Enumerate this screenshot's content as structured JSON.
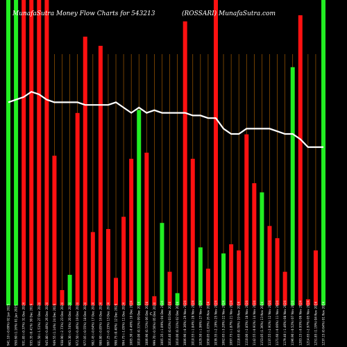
{
  "page": {
    "title_left": "MunafaSutra  Money Flow  Charts for 543213",
    "title_right": "(ROSSARI) MunafaSutra.com",
    "axis_marker": "C"
  },
  "colors": {
    "background": "#000000",
    "up": "#22ee22",
    "down": "#ff1111",
    "grid": "#a05a00",
    "line": "#ffffff",
    "text": "#ffffff"
  },
  "chart_data": {
    "type": "bar",
    "title": "MunafaSutra  Money Flow  Charts for 543213",
    "subtitle": "(ROSSARI) MunafaSutra.com",
    "ylim": [
      0,
      100
    ],
    "grid": "vertical",
    "categories": [
      "941.10 (-0.69%) 02 Jan 2025",
      "950.60 (1.16%) 01 Jan 2025",
      "931.85 (-0.37%) 31 Dec 2024",
      "935.35 (0.41%) 30 Dec 2024",
      "931.50 (-1.51%) 27 Dec 2024",
      "945.80 (-0.40%) 26 Dec 2024",
      "949.55 (1.14%) 24 Dec 2024",
      "938.90 (-2.73%) 23 Dec 2024",
      "965.30 (-0.74%) 20 Dec 2024",
      "972.50 (-0.46%) 19 Dec 2024",
      "977.05 (-0.55%) 18 Dec 2024",
      "982.45 (-0.64%) 17 Dec 2024",
      "988.80 (-0.85%) 16 Dec 2024",
      "997.25 (-0.15%) 13 Dec 2024",
      "998.75 (0.40%) 12 Dec 2024",
      "994.75 (-1.05%) 11 Dec 2024",
      "1005.30 (-0.46%) 10 Dec 2024",
      "1010.00 (0.31%) 09 Dec 2024",
      "1006.90 (0.72%) 06 Dec 2024",
      "999.70 (-0.56%) 05 Dec 2024",
      "1005.35 (-1.09%) 04 Dec 2024",
      "1016.40 (0.63%) 03 Dec 2024",
      "1010.00 (0.31%) 02 Dec 2024",
      "1006.90 (-0.36%) 29 Nov 2024",
      "1010.55 (-1.84%) 28 Nov 2024",
      "1029.50 (-1.96%) 27 Nov 2024",
      "1050.05 (1.03%) 26 Nov 2024",
      "1039.35 (-2.19%) 25 Nov 2024",
      "1062.65 (-3.20%) 22 Nov 2024",
      "1097.75 (-1.87%) 21 Nov 2024",
      "1118.65 (0.78%) 19 Nov 2024",
      "1110.00 (-2.85%) 18 Nov 2024",
      "1142.55 (-0.91%) 14 Nov 2024",
      "1153.05 (1.36%) 13 Nov 2024",
      "1137.55 (-2.91%) 12 Nov 2024",
      "1171.60 (-0.66%) 11 Nov 2024",
      "1179.40 (-1.46%) 08 Nov 2024",
      "1196.90 (-0.52%) 07 Nov 2024",
      "1203.15 (-0.95%) 06 Nov 2024",
      "1214.65 (-2.97%) 05 Nov 2024",
      "1251.85 (1.19%) 04 Nov 2024",
      "1237.15 (0.64%) 01 Nov 2024"
    ],
    "up": [
      true,
      true,
      false,
      false,
      false,
      false,
      false,
      false,
      true,
      false,
      false,
      false,
      false,
      false,
      false,
      false,
      false,
      true,
      false,
      false,
      true,
      false,
      true,
      false,
      false,
      true,
      false,
      false,
      true,
      false,
      false,
      false,
      false,
      true,
      false,
      false,
      false,
      true,
      false,
      false,
      false,
      true
    ],
    "values": [
      100,
      100,
      100,
      100,
      100,
      100,
      49,
      5,
      10,
      63,
      88,
      24,
      85,
      25,
      9,
      29,
      48,
      64,
      50,
      3,
      27,
      11,
      4,
      93,
      48,
      19,
      12,
      100,
      17,
      20,
      18,
      56,
      40,
      37,
      26,
      22,
      11,
      78,
      95,
      2,
      18,
      100
    ],
    "line": [
      77,
      78,
      79,
      81,
      80,
      78,
      77,
      77,
      77,
      77,
      76,
      76,
      76,
      76,
      77,
      75,
      73,
      75,
      73,
      74,
      73,
      73,
      73,
      73,
      72,
      72,
      71,
      71,
      67,
      65,
      65,
      67,
      67,
      67,
      67,
      66,
      65,
      65,
      63,
      60,
      60,
      60
    ]
  }
}
